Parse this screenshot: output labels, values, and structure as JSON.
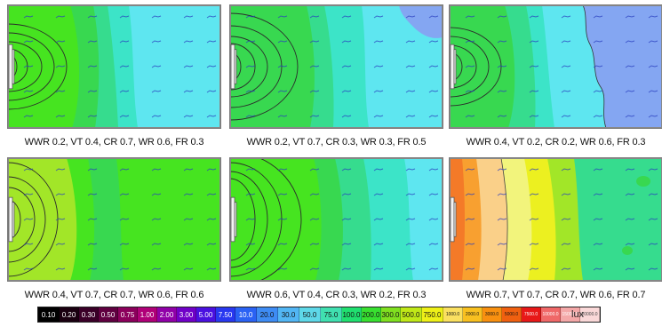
{
  "panels": [
    {
      "caption": "WWR 0.2, VT 0.4, CR 0.7, WR 0.6, FR 0.3"
    },
    {
      "caption": "WWR 0.2, VT 0.7, CR 0.3, WR 0.3, FR 0.5"
    },
    {
      "caption": "WWR 0.4, VT 0.2, CR 0.2, WR 0.6, FR 0.3"
    },
    {
      "caption": "WWR 0.4, VT 0.7, CR 0.7, WR 0.6, FR 0.6"
    },
    {
      "caption": "WWR 0.6, VT 0.4, CR 0.3, WR 0.2, FR 0.3"
    },
    {
      "caption": "WWR 0.7, VT 0.7, CR 0.7, WR 0.6, FR 0.7"
    }
  ],
  "legend": {
    "unit": "lux",
    "stops": [
      {
        "label": "0.10",
        "color": "#000000",
        "text": "#ffffff"
      },
      {
        "label": "0.20",
        "color": "#1a0010",
        "text": "#ffffff"
      },
      {
        "label": "0.30",
        "color": "#3a0028",
        "text": "#ffffff"
      },
      {
        "label": "0.50",
        "color": "#600040",
        "text": "#ffffff"
      },
      {
        "label": "0.75",
        "color": "#8c005c",
        "text": "#ffffff"
      },
      {
        "label": "1.00",
        "color": "#b00078",
        "text": "#ffffff"
      },
      {
        "label": "2.00",
        "color": "#9000a8",
        "text": "#ffffff"
      },
      {
        "label": "3.00",
        "color": "#7000c8",
        "text": "#ffffff"
      },
      {
        "label": "5.00",
        "color": "#4a10e0",
        "text": "#ffffff"
      },
      {
        "label": "7.50",
        "color": "#2838f0",
        "text": "#ffffff"
      },
      {
        "label": "10.0",
        "color": "#2a62f4",
        "text": "#ffffff"
      },
      {
        "label": "20.0",
        "color": "#3e8cf4",
        "text": "#111111"
      },
      {
        "label": "30.0",
        "color": "#52b6f4",
        "text": "#111111"
      },
      {
        "label": "50.0",
        "color": "#5ed8e8",
        "text": "#111111"
      },
      {
        "label": "75.0",
        "color": "#40e0b0",
        "text": "#111111"
      },
      {
        "label": "100.0",
        "color": "#20e070",
        "text": "#111111"
      },
      {
        "label": "200.0",
        "color": "#38e030",
        "text": "#111111"
      },
      {
        "label": "300.0",
        "color": "#80e020",
        "text": "#111111"
      },
      {
        "label": "500.0",
        "color": "#c0e818",
        "text": "#111111"
      },
      {
        "label": "750.0",
        "color": "#eef018",
        "text": "#111111"
      },
      {
        "label": "1000.0",
        "color": "#fae060",
        "text": "#111111"
      },
      {
        "label": "2000.0",
        "color": "#f8c020",
        "text": "#111111"
      },
      {
        "label": "3000.0",
        "color": "#f89010",
        "text": "#111111"
      },
      {
        "label": "5000.0",
        "color": "#f06010",
        "text": "#111111"
      },
      {
        "label": "7500.0",
        "color": "#e81818",
        "text": "#ffffff"
      },
      {
        "label": "10000.0",
        "color": "#f06868",
        "text": "#ffffff"
      },
      {
        "label": "15000.0",
        "color": "#f4a8a8",
        "text": "#ffffff"
      },
      {
        "label": "20000.0",
        "color": "#fad8d8",
        "text": "#444444"
      }
    ]
  }
}
